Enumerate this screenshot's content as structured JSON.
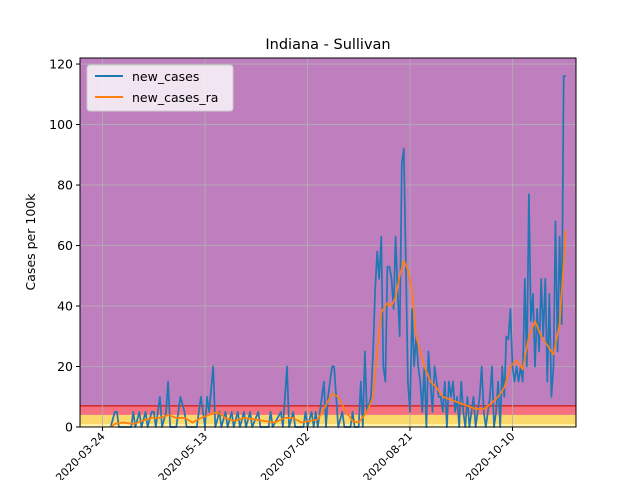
{
  "chart_data": {
    "type": "line",
    "title": "Indiana - Sullivan",
    "xlabel": "",
    "ylabel": "Cases per 100k",
    "x_tick_labels": [
      "2020-03-24",
      "2020-05-13",
      "2020-07-02",
      "2020-08-21",
      "2020-10-10"
    ],
    "y_ticks": [
      0,
      20,
      40,
      60,
      80,
      100,
      120
    ],
    "xlim": [
      "2020-03-13",
      "2020-11-10"
    ],
    "ylim": [
      0,
      122
    ],
    "grid": true,
    "legend_position": "top-left",
    "risk_bands": [
      {
        "from": 0,
        "to": 1,
        "color": "#fff2a8"
      },
      {
        "from": 1,
        "to": 4,
        "color": "#fad86a"
      },
      {
        "from": 4,
        "to": 7,
        "color": "#f5717f"
      },
      {
        "from": 7,
        "to": 122,
        "color": "#bf7fbf"
      }
    ],
    "colors": {
      "new_cases": "#1f77b4",
      "new_cases_ra": "#ff7f0e",
      "band_line": "#d62728"
    },
    "series": [
      {
        "name": "new_cases",
        "points": [
          [
            "2020-03-28",
            0
          ],
          [
            "2020-03-30",
            5
          ],
          [
            "2020-03-31",
            5
          ],
          [
            "2020-04-01",
            0
          ],
          [
            "2020-04-07",
            0
          ],
          [
            "2020-04-08",
            5
          ],
          [
            "2020-04-09",
            0
          ],
          [
            "2020-04-11",
            5
          ],
          [
            "2020-04-12",
            0
          ],
          [
            "2020-04-14",
            5
          ],
          [
            "2020-04-15",
            0
          ],
          [
            "2020-04-17",
            5
          ],
          [
            "2020-04-18",
            5
          ],
          [
            "2020-04-19",
            0
          ],
          [
            "2020-04-21",
            10
          ],
          [
            "2020-04-22",
            0
          ],
          [
            "2020-04-24",
            5
          ],
          [
            "2020-04-25",
            15
          ],
          [
            "2020-04-26",
            0
          ],
          [
            "2020-04-29",
            0
          ],
          [
            "2020-05-01",
            10
          ],
          [
            "2020-05-03",
            5
          ],
          [
            "2020-05-04",
            0
          ],
          [
            "2020-05-09",
            0
          ],
          [
            "2020-05-11",
            10
          ],
          [
            "2020-05-12",
            5
          ],
          [
            "2020-05-13",
            0
          ],
          [
            "2020-05-14",
            10
          ],
          [
            "2020-05-15",
            5
          ],
          [
            "2020-05-17",
            20
          ],
          [
            "2020-05-18",
            0
          ],
          [
            "2020-05-20",
            5
          ],
          [
            "2020-05-21",
            0
          ],
          [
            "2020-05-23",
            5
          ],
          [
            "2020-05-24",
            0
          ],
          [
            "2020-05-26",
            5
          ],
          [
            "2020-05-27",
            0
          ],
          [
            "2020-05-29",
            5
          ],
          [
            "2020-05-30",
            0
          ],
          [
            "2020-06-01",
            5
          ],
          [
            "2020-06-02",
            0
          ],
          [
            "2020-06-04",
            5
          ],
          [
            "2020-06-05",
            0
          ],
          [
            "2020-06-08",
            5
          ],
          [
            "2020-06-09",
            0
          ],
          [
            "2020-06-13",
            0
          ],
          [
            "2020-06-14",
            5
          ],
          [
            "2020-06-15",
            0
          ],
          [
            "2020-06-19",
            5
          ],
          [
            "2020-06-20",
            0
          ],
          [
            "2020-06-22",
            20
          ],
          [
            "2020-06-23",
            0
          ],
          [
            "2020-06-25",
            5
          ],
          [
            "2020-06-26",
            0
          ],
          [
            "2020-06-30",
            0
          ],
          [
            "2020-07-01",
            5
          ],
          [
            "2020-07-02",
            0
          ],
          [
            "2020-07-04",
            5
          ],
          [
            "2020-07-05",
            0
          ],
          [
            "2020-07-06",
            5
          ],
          [
            "2020-07-07",
            0
          ],
          [
            "2020-07-09",
            10
          ],
          [
            "2020-07-10",
            15
          ],
          [
            "2020-07-11",
            0
          ],
          [
            "2020-07-12",
            10
          ],
          [
            "2020-07-13",
            15
          ],
          [
            "2020-07-14",
            20
          ],
          [
            "2020-07-15",
            20
          ],
          [
            "2020-07-16",
            10
          ],
          [
            "2020-07-17",
            0
          ],
          [
            "2020-07-19",
            5
          ],
          [
            "2020-07-20",
            0
          ],
          [
            "2020-07-23",
            0
          ],
          [
            "2020-07-24",
            5
          ],
          [
            "2020-07-25",
            0
          ],
          [
            "2020-07-27",
            0
          ],
          [
            "2020-07-28",
            15
          ],
          [
            "2020-07-29",
            0
          ],
          [
            "2020-07-30",
            25
          ],
          [
            "2020-07-31",
            5
          ],
          [
            "2020-08-02",
            10
          ],
          [
            "2020-08-03",
            25
          ],
          [
            "2020-08-04",
            45
          ],
          [
            "2020-08-05",
            58
          ],
          [
            "2020-08-06",
            49
          ],
          [
            "2020-08-07",
            63
          ],
          [
            "2020-08-08",
            20
          ],
          [
            "2020-08-09",
            15
          ],
          [
            "2020-08-10",
            53
          ],
          [
            "2020-08-11",
            53
          ],
          [
            "2020-08-12",
            49
          ],
          [
            "2020-08-13",
            39
          ],
          [
            "2020-08-14",
            63
          ],
          [
            "2020-08-15",
            44
          ],
          [
            "2020-08-16",
            30
          ],
          [
            "2020-08-17",
            87
          ],
          [
            "2020-08-18",
            92
          ],
          [
            "2020-08-19",
            53
          ],
          [
            "2020-08-20",
            15
          ],
          [
            "2020-08-21",
            5
          ],
          [
            "2020-08-22",
            39
          ],
          [
            "2020-08-23",
            20
          ],
          [
            "2020-08-24",
            30
          ],
          [
            "2020-08-25",
            20
          ],
          [
            "2020-08-26",
            15
          ],
          [
            "2020-08-27",
            5
          ],
          [
            "2020-08-28",
            20
          ],
          [
            "2020-08-29",
            0
          ],
          [
            "2020-08-30",
            25
          ],
          [
            "2020-08-31",
            15
          ],
          [
            "2020-09-01",
            5
          ],
          [
            "2020-09-02",
            20
          ],
          [
            "2020-09-03",
            15
          ],
          [
            "2020-09-04",
            10
          ],
          [
            "2020-09-05",
            10
          ],
          [
            "2020-09-06",
            5
          ],
          [
            "2020-09-07",
            15
          ],
          [
            "2020-09-08",
            0
          ],
          [
            "2020-09-09",
            15
          ],
          [
            "2020-09-10",
            10
          ],
          [
            "2020-09-11",
            15
          ],
          [
            "2020-09-12",
            5
          ],
          [
            "2020-09-13",
            10
          ],
          [
            "2020-09-14",
            0
          ],
          [
            "2020-09-15",
            15
          ],
          [
            "2020-09-16",
            5
          ],
          [
            "2020-09-17",
            0
          ],
          [
            "2020-09-18",
            10
          ],
          [
            "2020-09-19",
            0
          ],
          [
            "2020-09-20",
            5
          ],
          [
            "2020-09-21",
            10
          ],
          [
            "2020-09-22",
            0
          ],
          [
            "2020-09-23",
            5
          ],
          [
            "2020-09-24",
            10
          ],
          [
            "2020-09-25",
            20
          ],
          [
            "2020-09-26",
            5
          ],
          [
            "2020-09-27",
            0
          ],
          [
            "2020-09-28",
            5
          ],
          [
            "2020-09-29",
            10
          ],
          [
            "2020-09-30",
            20
          ],
          [
            "2020-10-01",
            0
          ],
          [
            "2020-10-02",
            5
          ],
          [
            "2020-10-03",
            15
          ],
          [
            "2020-10-04",
            0
          ],
          [
            "2020-10-05",
            20
          ],
          [
            "2020-10-06",
            10
          ],
          [
            "2020-10-07",
            30
          ],
          [
            "2020-10-08",
            29
          ],
          [
            "2020-10-09",
            39
          ],
          [
            "2020-10-10",
            20
          ],
          [
            "2020-10-11",
            15
          ],
          [
            "2020-10-12",
            20
          ],
          [
            "2020-10-13",
            15
          ],
          [
            "2020-10-14",
            20
          ],
          [
            "2020-10-15",
            15
          ],
          [
            "2020-10-16",
            49
          ],
          [
            "2020-10-17",
            20
          ],
          [
            "2020-10-18",
            77
          ],
          [
            "2020-10-19",
            35
          ],
          [
            "2020-10-20",
            44
          ],
          [
            "2020-10-21",
            20
          ],
          [
            "2020-10-22",
            39
          ],
          [
            "2020-10-23",
            25
          ],
          [
            "2020-10-24",
            49
          ],
          [
            "2020-10-25",
            30
          ],
          [
            "2020-10-26",
            49
          ],
          [
            "2020-10-27",
            15
          ],
          [
            "2020-10-28",
            44
          ],
          [
            "2020-10-29",
            10
          ],
          [
            "2020-10-30",
            20
          ],
          [
            "2020-10-31",
            68
          ],
          [
            "2020-11-01",
            25
          ],
          [
            "2020-11-02",
            63
          ],
          [
            "2020-11-03",
            34
          ],
          [
            "2020-11-04",
            116
          ],
          [
            "2020-11-05",
            116
          ]
        ]
      },
      {
        "name": "new_cases_ra",
        "points": [
          [
            "2020-03-28",
            0
          ],
          [
            "2020-03-30",
            1
          ],
          [
            "2020-04-03",
            1.5
          ],
          [
            "2020-04-08",
            1
          ],
          [
            "2020-04-12",
            2
          ],
          [
            "2020-04-17",
            3
          ],
          [
            "2020-04-21",
            3
          ],
          [
            "2020-04-25",
            4
          ],
          [
            "2020-04-29",
            3
          ],
          [
            "2020-05-03",
            3
          ],
          [
            "2020-05-07",
            1.5
          ],
          [
            "2020-05-11",
            3
          ],
          [
            "2020-05-15",
            4
          ],
          [
            "2020-05-19",
            5
          ],
          [
            "2020-05-23",
            3
          ],
          [
            "2020-05-27",
            2
          ],
          [
            "2020-06-01",
            3
          ],
          [
            "2020-06-06",
            2.5
          ],
          [
            "2020-06-11",
            2
          ],
          [
            "2020-06-16",
            1.5
          ],
          [
            "2020-06-21",
            3
          ],
          [
            "2020-06-25",
            3
          ],
          [
            "2020-06-29",
            1.5
          ],
          [
            "2020-07-03",
            2
          ],
          [
            "2020-07-07",
            2.5
          ],
          [
            "2020-07-10",
            6
          ],
          [
            "2020-07-14",
            11
          ],
          [
            "2020-07-17",
            10
          ],
          [
            "2020-07-20",
            6
          ],
          [
            "2020-07-24",
            2
          ],
          [
            "2020-07-27",
            1.5
          ],
          [
            "2020-07-31",
            5
          ],
          [
            "2020-08-03",
            10
          ],
          [
            "2020-08-05",
            25
          ],
          [
            "2020-08-07",
            38
          ],
          [
            "2020-08-10",
            41
          ],
          [
            "2020-08-12",
            40
          ],
          [
            "2020-08-14",
            43
          ],
          [
            "2020-08-16",
            50
          ],
          [
            "2020-08-18",
            55
          ],
          [
            "2020-08-20",
            52
          ],
          [
            "2020-08-22",
            45
          ],
          [
            "2020-08-24",
            30
          ],
          [
            "2020-08-26",
            25
          ],
          [
            "2020-08-28",
            20
          ],
          [
            "2020-08-31",
            15
          ],
          [
            "2020-09-03",
            13
          ],
          [
            "2020-09-06",
            10
          ],
          [
            "2020-09-10",
            9
          ],
          [
            "2020-09-14",
            8
          ],
          [
            "2020-09-18",
            7
          ],
          [
            "2020-09-22",
            6
          ],
          [
            "2020-09-26",
            6
          ],
          [
            "2020-09-30",
            8
          ],
          [
            "2020-10-03",
            10
          ],
          [
            "2020-10-06",
            13
          ],
          [
            "2020-10-09",
            20
          ],
          [
            "2020-10-12",
            22
          ],
          [
            "2020-10-15",
            19
          ],
          [
            "2020-10-18",
            30
          ],
          [
            "2020-10-21",
            35
          ],
          [
            "2020-10-24",
            30
          ],
          [
            "2020-10-27",
            27
          ],
          [
            "2020-10-30",
            24
          ],
          [
            "2020-11-02",
            34
          ],
          [
            "2020-11-05",
            65
          ]
        ]
      }
    ]
  }
}
